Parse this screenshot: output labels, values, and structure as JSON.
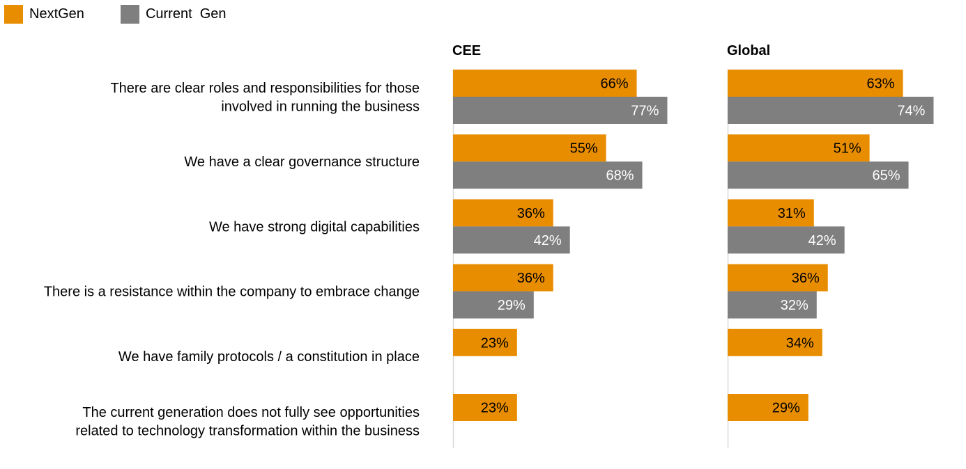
{
  "legend": [
    {
      "label": "NextGen",
      "color": "#E88D00"
    },
    {
      "label": "Current  Gen",
      "color": "#7F7F7F"
    }
  ],
  "chart_data": [
    {
      "type": "bar",
      "orientation": "horizontal",
      "title": "CEE",
      "categories": [
        [
          "There are clear roles and responsibilities for those",
          "involved in running  the business"
        ],
        [
          "We have a clear governance structure"
        ],
        [
          "We have strong digital capabilities"
        ],
        [
          "There is a resistance within  the company to embrace change"
        ],
        [
          "We have family protocols / a constitution in place"
        ],
        [
          "The current generation does not fully see opportunities",
          "related to technology transformation within the business"
        ]
      ],
      "series": [
        {
          "name": "NextGen",
          "color": "#E88D00",
          "values": [
            66,
            55,
            36,
            36,
            23,
            23
          ]
        },
        {
          "name": "Current  Gen",
          "color": "#7F7F7F",
          "values": [
            77,
            68,
            42,
            29,
            null,
            null
          ]
        }
      ],
      "value_suffix": "%",
      "xlim": [
        0,
        100
      ],
      "grid": false
    },
    {
      "type": "bar",
      "orientation": "horizontal",
      "title": "Global",
      "series": [
        {
          "name": "NextGen",
          "color": "#E88D00",
          "values": [
            63,
            51,
            31,
            36,
            34,
            29
          ]
        },
        {
          "name": "Current  Gen",
          "color": "#7F7F7F",
          "values": [
            74,
            65,
            42,
            32,
            null,
            null
          ]
        }
      ],
      "value_suffix": "%",
      "xlim": [
        0,
        100
      ],
      "grid": false
    }
  ]
}
